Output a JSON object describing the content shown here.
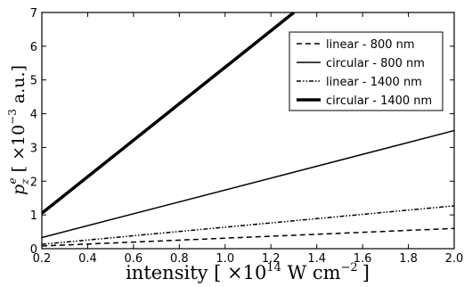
{
  "chart_data": {
    "type": "line",
    "xlabel_main": "intensity [ ×10",
    "xlabel_sup": "14",
    "xlabel_unit": " W cm",
    "xlabel_unit_sup": "−2",
    "xlabel_end": "]",
    "ylabel_p": "p",
    "ylabel_sub": "z",
    "ylabel_sup": "e",
    "ylabel_rest": " [ ×10",
    "ylabel_rest_sup": "−3",
    "ylabel_end": " a.u.]",
    "xlim": [
      0.2,
      2.0
    ],
    "ylim": [
      0,
      7
    ],
    "x_ticks": [
      "0.2",
      "0.4",
      "0.6",
      "0.8",
      "1.0",
      "1.2",
      "1.4",
      "1.6",
      "1.8",
      "2.0"
    ],
    "x_tick_values": [
      0.2,
      0.4,
      0.6,
      0.8,
      1.0,
      1.2,
      1.4,
      1.6,
      1.8,
      2.0
    ],
    "y_ticks": [
      "0",
      "1",
      "2",
      "3",
      "4",
      "5",
      "6",
      "7"
    ],
    "y_tick_values": [
      0,
      1,
      2,
      3,
      4,
      5,
      6,
      7
    ],
    "grid": false,
    "legend_position": "top-right",
    "series": [
      {
        "name": "linear - 800 nm",
        "style": "dashed",
        "x": [
          0.2,
          2.0
        ],
        "y": [
          0.08,
          0.6
        ]
      },
      {
        "name": "circular - 800 nm",
        "style": "solid",
        "x": [
          0.2,
          2.0
        ],
        "y": [
          0.33,
          3.5
        ]
      },
      {
        "name": "linear - 1400 nm",
        "style": "dashdotdot",
        "x": [
          0.2,
          2.0
        ],
        "y": [
          0.13,
          1.27
        ]
      },
      {
        "name": "circular - 1400 nm",
        "style": "thick",
        "x": [
          0.2,
          1.3
        ],
        "y": [
          1.05,
          7.0
        ]
      }
    ],
    "colors": {
      "line": "#000000",
      "background": "#ffffff"
    }
  }
}
